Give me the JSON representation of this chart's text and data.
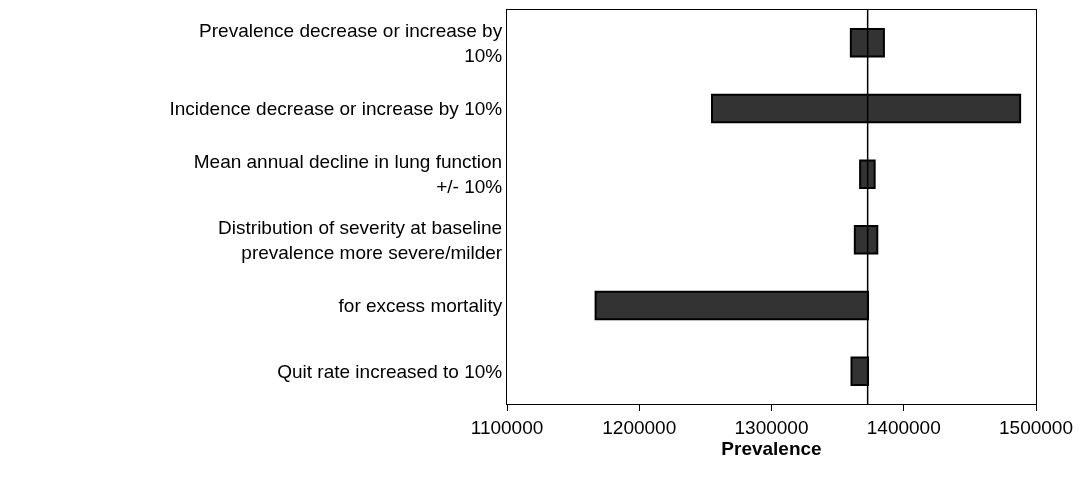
{
  "chart_data": {
    "type": "bar",
    "orientation": "horizontal",
    "xlabel": "Prevalence",
    "categories": [
      "Prevalence decrease or increase by 10%",
      "Incidence decrease or increase by 10%",
      "Mean annual decline in lung function +/- 10%",
      "Distribution of severity at baseline prevalence more severe/milder",
      "for excess mortality",
      "Quit rate increased to 10%"
    ],
    "base": [
      1360000,
      1255000,
      1367000,
      1363000,
      1167000,
      1360500
    ],
    "values": [
      25000,
      233000,
      11000,
      17000,
      206000,
      12500
    ],
    "color": "#333333",
    "xlim": [
      1100000,
      1500000
    ],
    "xticks": [
      1100000,
      1200000,
      1300000,
      1400000,
      1500000
    ],
    "ref_lines": [
      {
        "axis": "x",
        "value": 1372700,
        "color": "#000000"
      }
    ],
    "legend": false
  }
}
